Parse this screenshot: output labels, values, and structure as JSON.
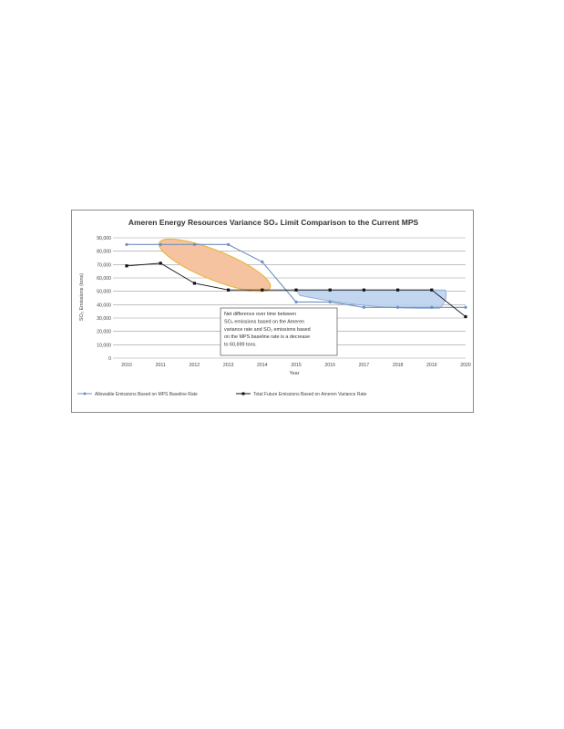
{
  "chart_data": {
    "type": "line",
    "title": "Ameren Energy Resources Variance SO₂ Limit Comparison to the Current MPS",
    "xlabel": "Year",
    "ylabel": "SO₂ Emissions (tons)",
    "ylim": [
      0,
      90000
    ],
    "yticks": [
      0,
      10000,
      20000,
      30000,
      40000,
      50000,
      60000,
      70000,
      80000,
      90000
    ],
    "ytick_labels": [
      "0",
      "10,000",
      "20,000",
      "30,000",
      "40,000",
      "50,000",
      "60,000",
      "70,000",
      "80,000",
      "90,000"
    ],
    "x": [
      2010,
      2011,
      2012,
      2013,
      2014,
      2015,
      2016,
      2017,
      2018,
      2019,
      2020
    ],
    "grid": true,
    "legend_position": "bottom",
    "series": [
      {
        "name": "Allowable Emissions Based on MPS Baseline Rate",
        "color": "#6f8fbf",
        "marker": "circle",
        "values": [
          85000,
          85000,
          85000,
          85000,
          72000,
          42000,
          42000,
          38000,
          38000,
          38000,
          38000
        ]
      },
      {
        "name": "Total Future Emissions Based on Ameren Variance Rate",
        "color": "#111111",
        "marker": "square",
        "values": [
          69000,
          71000,
          56000,
          51000,
          51000,
          51000,
          51000,
          51000,
          51000,
          51000,
          31000
        ]
      }
    ],
    "annotations": [
      {
        "lines": [
          "Net difference over time between",
          "SO₂ emissions based on the Ameren",
          "variance rate and SO₂ emissions based",
          "on the MPS baseline rate is a decrease",
          "to 60,699 tons."
        ]
      }
    ],
    "highlights": [
      {
        "shape": "ellipse",
        "fill": "#f6c3a1",
        "stroke": "#e8b84a",
        "x_range": [
          2011,
          2014.2
        ],
        "y_range": [
          52000,
          87000
        ]
      },
      {
        "shape": "region",
        "fill": "#bcd3ee",
        "stroke": "#7f9fcf",
        "x_range": [
          2015,
          2019.4
        ],
        "y_range": [
          38000,
          51000
        ]
      }
    ]
  }
}
